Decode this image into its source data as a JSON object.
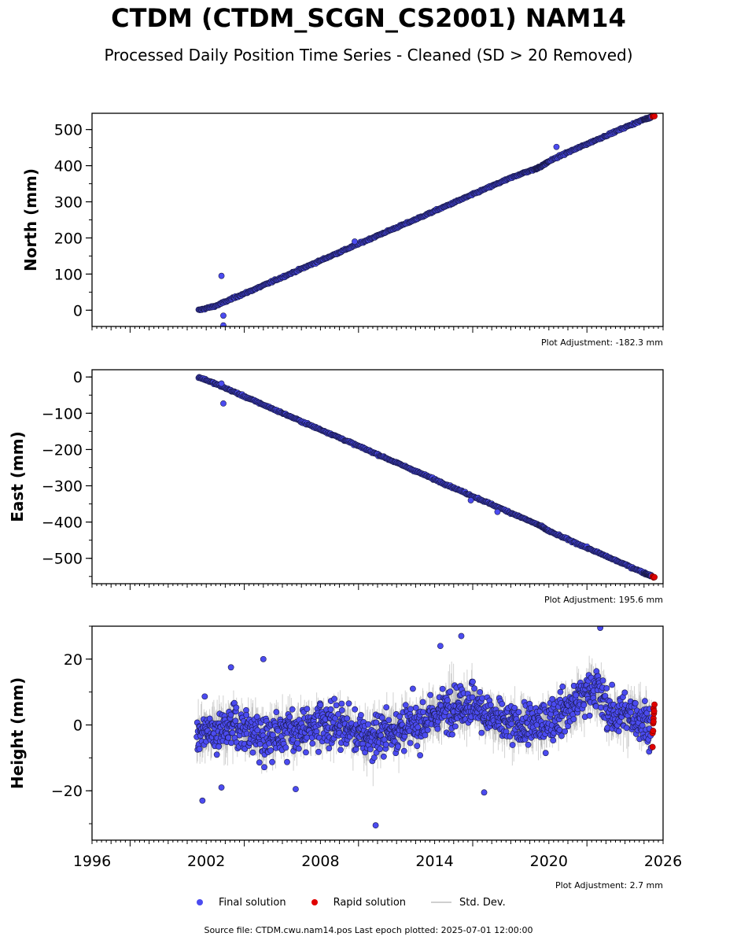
{
  "title": "CTDM (CTDM_SCGN_CS2001) NAM14",
  "subtitle": "Processed Daily Position Time Series - Cleaned (SD > 20 Removed)",
  "footer": "Source file: CTDM.cwu.nam14.pos  Last epoch plotted: 2025-07-01 12:00:00",
  "legend": {
    "final": "Final solution",
    "rapid": "Rapid solution",
    "std": "Std. Dev."
  },
  "colors": {
    "final": "#4b4bf0",
    "final_edge": "#1a1a4a",
    "rapid": "#e00000",
    "std": "#bdbdbd"
  },
  "chart_data": [
    {
      "type": "scatter",
      "ylabel": "North (mm)",
      "adjustment": "Plot Adjustment: -182.3 mm",
      "xlim": [
        1996,
        2026
      ],
      "ylim": [
        -45,
        545
      ],
      "yticks": [
        0,
        100,
        200,
        300,
        400,
        500
      ],
      "ytick_labels": [
        "0",
        "100",
        "200",
        "300",
        "400",
        "500"
      ],
      "series": [
        {
          "points": [
            [
              2001.6,
              0
            ],
            [
              2002.5,
              12
            ],
            [
              2003.5,
              35
            ],
            [
              2004.5,
              57
            ],
            [
              2005.5,
              80
            ],
            [
              2006.5,
              103
            ],
            [
              2007.5,
              126
            ],
            [
              2008.5,
              149
            ],
            [
              2009.5,
              172
            ],
            [
              2010.5,
              195
            ],
            [
              2011.5,
              218
            ],
            [
              2012.5,
              240
            ],
            [
              2013.5,
              263
            ],
            [
              2014.5,
              286
            ],
            [
              2015.5,
              309
            ],
            [
              2016.5,
              332
            ],
            [
              2017.5,
              355
            ],
            [
              2018.5,
              377
            ],
            [
              2019.3,
              391
            ],
            [
              2019.6,
              398
            ],
            [
              2020.0,
              412
            ],
            [
              2021.0,
              437
            ],
            [
              2022.0,
              460
            ],
            [
              2023.0,
              483
            ],
            [
              2024.0,
              506
            ],
            [
              2025.0,
              528
            ],
            [
              2025.4,
              535
            ]
          ],
          "outliers": [
            [
              2002.8,
              95
            ],
            [
              2002.9,
              -15
            ],
            [
              2002.9,
              -42
            ],
            [
              2009.8,
              190
            ],
            [
              2020.4,
              452
            ]
          ]
        },
        {
          "rapid": [
            [
              2025.45,
              536
            ],
            [
              2025.5,
              538
            ],
            [
              2025.55,
              537
            ]
          ]
        }
      ]
    },
    {
      "type": "scatter",
      "ylabel": "East (mm)",
      "adjustment": "Plot Adjustment: 195.6 mm",
      "xlim": [
        1996,
        2026
      ],
      "ylim": [
        -570,
        20
      ],
      "yticks": [
        0,
        -100,
        -200,
        -300,
        -400,
        -500
      ],
      "ytick_labels": [
        "0",
        "−100",
        "−200",
        "−300",
        "−400",
        "−500"
      ],
      "series": [
        {
          "points": [
            [
              2001.6,
              0
            ],
            [
              2002.5,
              -19
            ],
            [
              2003.5,
              -42
            ],
            [
              2004.5,
              -65
            ],
            [
              2005.5,
              -88
            ],
            [
              2006.5,
              -111
            ],
            [
              2007.5,
              -134
            ],
            [
              2008.5,
              -156
            ],
            [
              2009.5,
              -179
            ],
            [
              2010.5,
              -202
            ],
            [
              2011.5,
              -225
            ],
            [
              2012.5,
              -248
            ],
            [
              2013.5,
              -271
            ],
            [
              2014.5,
              -294
            ],
            [
              2015.5,
              -317
            ],
            [
              2016.5,
              -340
            ],
            [
              2017.5,
              -363
            ],
            [
              2018.5,
              -386
            ],
            [
              2019.5,
              -409
            ],
            [
              2020.0,
              -425
            ],
            [
              2021.0,
              -448
            ],
            [
              2022.0,
              -471
            ],
            [
              2023.0,
              -494
            ],
            [
              2024.0,
              -517
            ],
            [
              2025.0,
              -540
            ],
            [
              2025.4,
              -549
            ]
          ],
          "outliers": [
            [
              2002.8,
              -18
            ],
            [
              2002.9,
              -73
            ],
            [
              2015.9,
              -340
            ],
            [
              2017.3,
              -372
            ]
          ]
        },
        {
          "rapid": [
            [
              2025.45,
              -550
            ],
            [
              2025.5,
              -553
            ],
            [
              2025.55,
              -552
            ]
          ]
        }
      ]
    },
    {
      "type": "scatter",
      "ylabel": "Height (mm)",
      "adjustment": "Plot Adjustment: 2.7 mm",
      "xlim": [
        1996,
        2026
      ],
      "ylim": [
        -35,
        30
      ],
      "yticks": [
        20,
        0,
        -20
      ],
      "ytick_labels": [
        "20",
        "0",
        "−20"
      ],
      "xticks": [
        1996,
        2002,
        2008,
        2014,
        2020,
        2026
      ],
      "xtick_labels": [
        "1996",
        "2002",
        "2008",
        "2014",
        "2020",
        "2026"
      ],
      "series": [
        {
          "range": [
            2001.5,
            2025.4
          ],
          "noise_amplitude": 5,
          "trend": [
            [
              2001.5,
              -3
            ],
            [
              2003,
              0
            ],
            [
              2005,
              -3
            ],
            [
              2007,
              -1
            ],
            [
              2009,
              0
            ],
            [
              2010.5,
              -4
            ],
            [
              2011.5,
              -2
            ],
            [
              2013,
              0
            ],
            [
              2015,
              6
            ],
            [
              2016,
              7
            ],
            [
              2017,
              2
            ],
            [
              2018,
              0
            ],
            [
              2019.5,
              0
            ],
            [
              2021,
              5
            ],
            [
              2022.5,
              12
            ],
            [
              2023.3,
              3
            ],
            [
              2024.5,
              3
            ],
            [
              2025.4,
              0
            ]
          ],
          "outliers": [
            [
              2001.8,
              -23
            ],
            [
              2002.8,
              -19
            ],
            [
              2005.0,
              20
            ],
            [
              2006.7,
              -19.5
            ],
            [
              2010.9,
              -30.5
            ],
            [
              2014.3,
              24
            ],
            [
              2015.4,
              27
            ],
            [
              2016.6,
              -20.5
            ],
            [
              2022.7,
              29.5
            ],
            [
              2003.3,
              17.5
            ]
          ]
        },
        {
          "rapid": [
            [
              2025.45,
              -6.7
            ],
            [
              2025.45,
              -2.5
            ],
            [
              2025.48,
              0.5
            ],
            [
              2025.5,
              2
            ],
            [
              2025.52,
              3.5
            ],
            [
              2025.5,
              5
            ],
            [
              2025.55,
              6.2
            ],
            [
              2025.48,
              -1.8
            ],
            [
              2025.53,
              4.2
            ],
            [
              2025.5,
              1
            ]
          ]
        }
      ]
    }
  ]
}
